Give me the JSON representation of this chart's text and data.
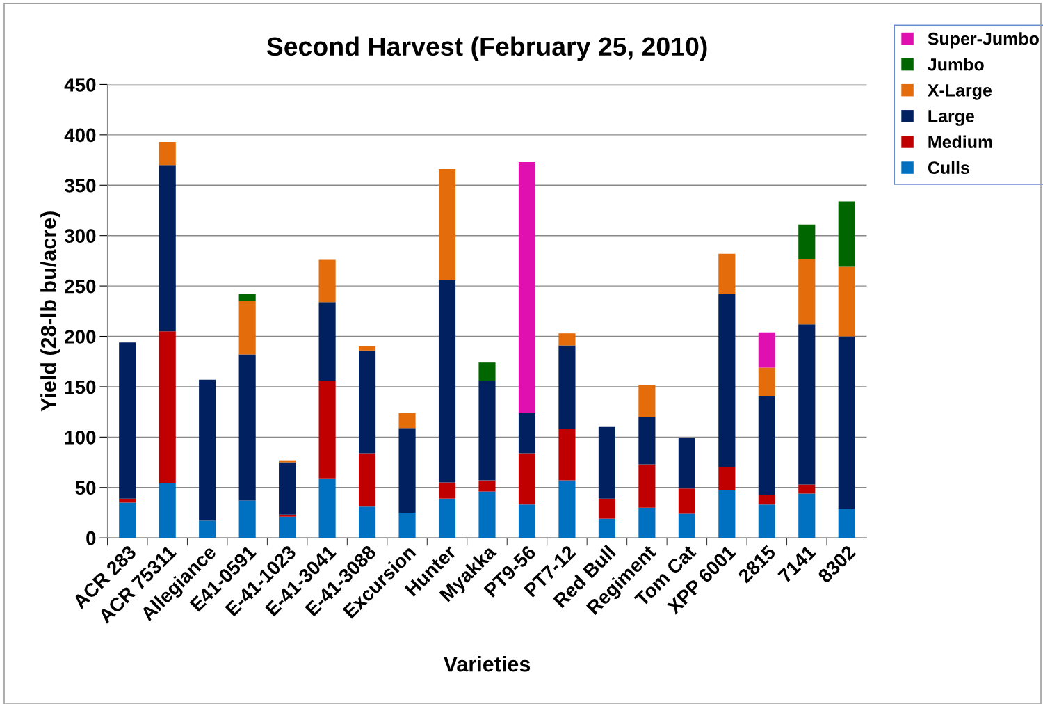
{
  "chart_data": {
    "type": "bar",
    "stacked": true,
    "title": "Second Harvest (February 25, 2010)",
    "xlabel": "Varieties",
    "ylabel": "Yield (28-lb bu/acre)",
    "categories": [
      "ACR 283",
      "ACR 75311",
      "Allegiance",
      "E41-0591",
      "E-41-1023",
      "E-41-3041",
      "E-41-3088",
      "Excursion",
      "Hunter",
      "Myakka",
      "PT9-56",
      "PT7-12",
      "Red Bull",
      "Regiment",
      "Tom Cat",
      "XPP 6001",
      "2815",
      "7141",
      "8302"
    ],
    "series": [
      {
        "name": "Culls",
        "color": "#0070c0",
        "values": [
          35,
          54,
          17,
          37,
          21,
          59,
          31,
          25,
          39,
          46,
          33,
          57,
          19,
          30,
          24,
          47,
          33,
          44,
          29
        ]
      },
      {
        "name": "Medium",
        "color": "#c00000",
        "values": [
          4,
          151,
          0,
          0,
          2,
          97,
          53,
          0,
          16,
          11,
          51,
          51,
          20,
          43,
          25,
          23,
          10,
          9,
          0
        ]
      },
      {
        "name": "Large",
        "color": "#002060",
        "values": [
          155,
          165,
          140,
          145,
          52,
          78,
          102,
          84,
          201,
          99,
          40,
          83,
          71,
          47,
          50,
          172,
          98,
          159,
          171
        ]
      },
      {
        "name": "X-Large",
        "color": "#e46c0a",
        "values": [
          0,
          23,
          0,
          53,
          2,
          42,
          4,
          15,
          110,
          0,
          0,
          12,
          0,
          32,
          0,
          40,
          28,
          65,
          69
        ]
      },
      {
        "name": "Jumbo",
        "color": "#006600",
        "values": [
          0,
          0,
          0,
          7,
          0,
          0,
          0,
          0,
          0,
          18,
          0,
          0,
          0,
          0,
          0,
          0,
          0,
          34,
          65
        ]
      },
      {
        "name": "Super-Jumbo",
        "color": "#e010b0",
        "values": [
          0,
          0,
          0,
          0,
          0,
          0,
          0,
          0,
          0,
          0,
          249,
          0,
          0,
          0,
          0,
          0,
          35,
          0,
          0
        ]
      }
    ],
    "ylim": [
      0,
      450
    ],
    "yticks": [
      0,
      50,
      100,
      150,
      200,
      250,
      300,
      350,
      400,
      450
    ],
    "grid": "y",
    "legend": "top right"
  }
}
